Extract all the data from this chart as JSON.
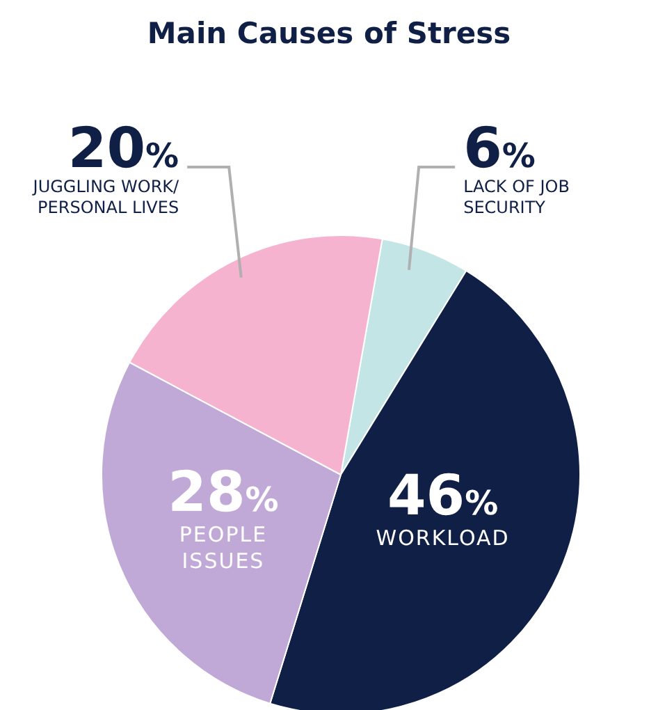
{
  "chart_data": {
    "type": "pie",
    "title": "Main Causes of Stress",
    "categories": [
      "LACK OF JOB\nSECURITY",
      "WORKLOAD",
      "PEOPLE\nISSUES",
      "JUGGLING WORK/\nPERSONAL LIVES"
    ],
    "values": [
      6,
      46,
      28,
      20
    ],
    "value_labels": [
      "6%",
      "46%",
      "28%",
      "20%"
    ],
    "colors": [
      "#c3e5e6",
      "#0f1f45",
      "#c0a9d6",
      "#f5b3cf"
    ],
    "legend": false
  }
}
